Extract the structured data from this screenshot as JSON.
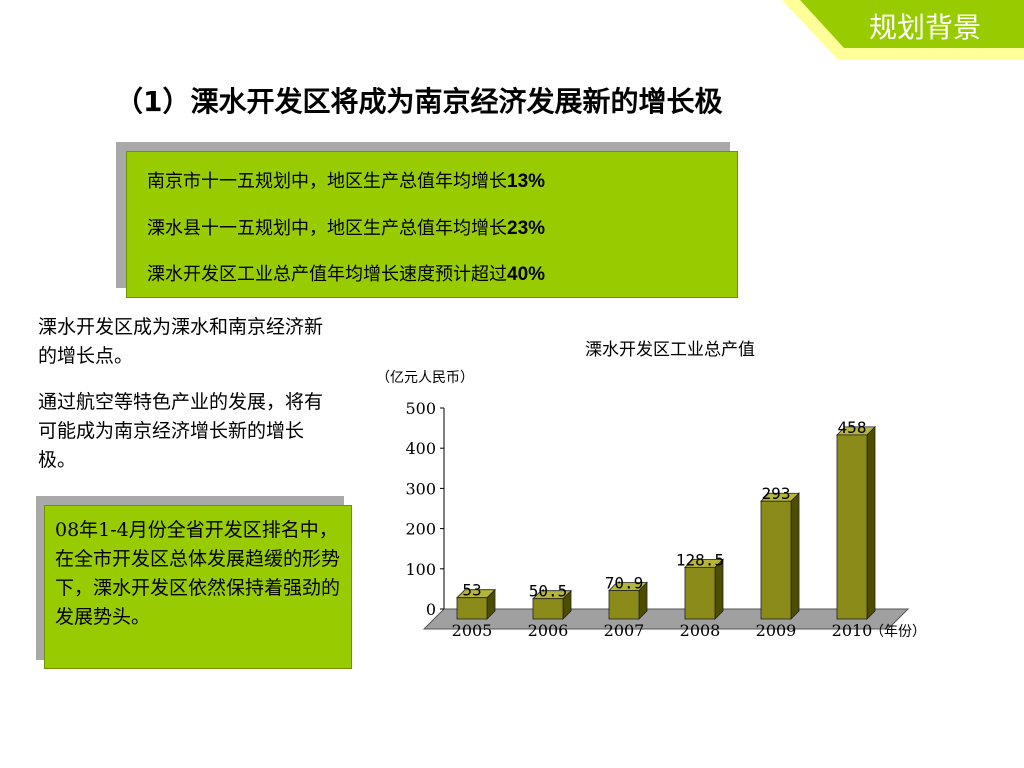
{
  "corner_tab": {
    "label": "规划背景",
    "fill": "#99cc00",
    "stripe": "#ffff99"
  },
  "heading": "（1）溧水开发区将成为南京经济发展新的增长极",
  "goals": [
    {
      "text": "南京市十一五规划中，地区生产总值年均增长",
      "value": "13%"
    },
    {
      "text": "溧水县十一五规划中，地区生产总值年均增长",
      "value": "23%"
    },
    {
      "text": "溧水开发区工业总产值年均增长速度预计超过",
      "value": "40%"
    }
  ],
  "paragraphs": [
    "溧水开发区成为溧水和南京经济新的增长点。",
    "通过航空等特色产业的发展，将有可能成为南京经济增长新的增长极。"
  ],
  "status_note": "08年1-4月份全省开发区排名中，在全市开发区总体发展趋缓的形势下，溧水开发区依然保持着强劲的发展势头。",
  "colors": {
    "panel_green": "#99cc00",
    "panel_shadow": "#a9a9a9",
    "bar": "#8b8b1a",
    "bar_side": "#4d4d00",
    "floor": "#a0a0a0"
  },
  "chart_data": {
    "type": "bar",
    "title": "溧水开发区工业总产值",
    "ylabel": "（亿元人民币）",
    "xlabel": "（年份）",
    "categories": [
      "2005",
      "2006",
      "2007",
      "2008",
      "2009",
      "2010"
    ],
    "values": [
      53,
      50.5,
      70.9,
      128.5,
      293,
      458
    ],
    "value_labels": [
      "53",
      "50.5",
      "70.9",
      "128.5",
      "293",
      "458"
    ],
    "ylim": [
      0,
      500
    ],
    "yticks": [
      0,
      100,
      200,
      300,
      400,
      500
    ],
    "grid": false,
    "legend": "none"
  }
}
